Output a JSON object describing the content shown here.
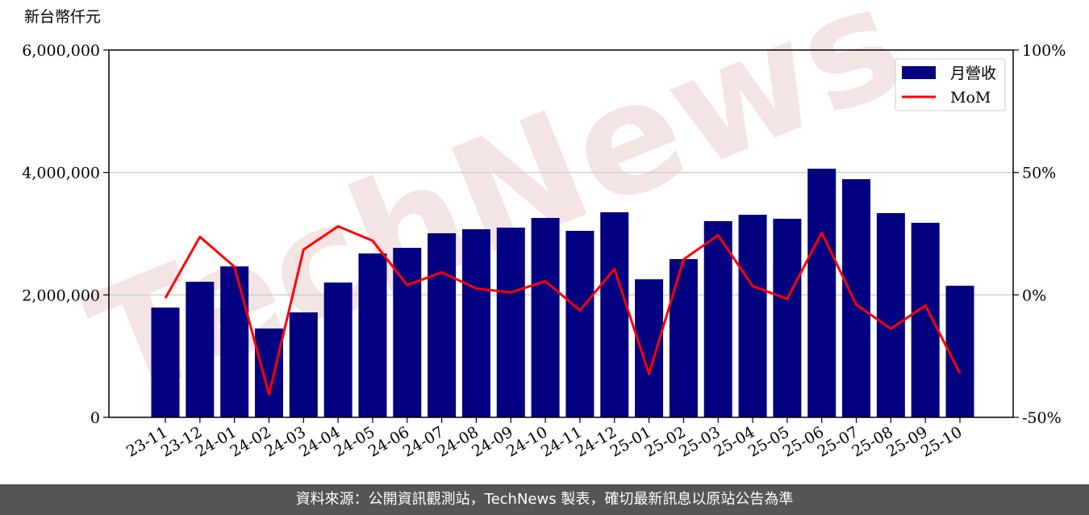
{
  "chart_data": {
    "type": "bar-line",
    "y_label": "新台幣仟元",
    "watermark": "TechNews",
    "categories": [
      "23-11",
      "23-12",
      "24-01",
      "24-02",
      "24-03",
      "24-04",
      "24-05",
      "24-06",
      "24-07",
      "24-08",
      "24-09",
      "24-10",
      "24-11",
      "24-12",
      "25-01",
      "25-02",
      "25-03",
      "25-04",
      "25-05",
      "25-06",
      "25-07",
      "25-08",
      "25-09",
      "25-10"
    ],
    "series": [
      {
        "name": "月營收",
        "type": "bar",
        "color": "#000080",
        "values": [
          1793000,
          2215000,
          2466000,
          1451000,
          1714000,
          2202000,
          2677000,
          2769000,
          3007000,
          3073000,
          3099000,
          3257000,
          3046000,
          3350000,
          2255000,
          2585000,
          3205000,
          3310000,
          3244000,
          4062000,
          3890000,
          3336000,
          3178000,
          2150000
        ]
      },
      {
        "name": "MoM",
        "type": "line",
        "axis": "y2",
        "color": "#ff0000",
        "values": [
          -1.3,
          23.7,
          11.5,
          -40.6,
          18.5,
          28.0,
          22.1,
          4.0,
          9.2,
          2.6,
          1.0,
          5.6,
          -6.3,
          10.6,
          -32.3,
          14.5,
          24.4,
          3.6,
          -1.6,
          25.4,
          -4.0,
          -13.8,
          -4.3,
          -32.0
        ]
      }
    ],
    "ylim": [
      0,
      6000000
    ],
    "yticks": [
      0,
      {
        "value": 2000000,
        "label": "2,000,000"
      },
      {
        "value": 4000000,
        "label": "4,000,000"
      },
      {
        "value": 6000000,
        "label": "6,000,000"
      }
    ],
    "y2lim": [
      -50,
      100
    ],
    "y2ticks": [
      {
        "value": -50,
        "label": "-50%"
      },
      {
        "value": 0,
        "label": "0%"
      },
      {
        "value": 50,
        "label": "50%"
      },
      {
        "value": 100,
        "label": "100%"
      }
    ],
    "grid": true,
    "legend": "upper right"
  },
  "footer": "資料來源：公開資訊觀測站，TechNews 製表，確切最新訊息以原站公告為準"
}
